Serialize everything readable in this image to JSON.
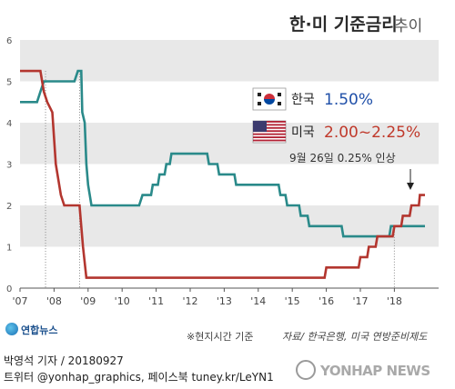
{
  "title": {
    "main": "한·미 기준금리",
    "sub": "추이"
  },
  "colors": {
    "korea_line": "#2a8a8a",
    "us_line": "#b3362f",
    "band": "#e8e8e8",
    "korea_rate_text": "#1f4fa8",
    "us_rate_text": "#c0392b"
  },
  "legend": {
    "korea": {
      "flag_icon": "korea-flag-icon",
      "name": "한국",
      "rate": "1.50%"
    },
    "us": {
      "flag_icon": "usa-flag-icon",
      "name": "미국",
      "rate": "2.00~2.25%"
    }
  },
  "annotation": "9월 26일 0.25% 인상",
  "chart_data": {
    "type": "line",
    "xlabel": "",
    "ylabel": "",
    "x_ticks": [
      "'07",
      "'08",
      "'09",
      "'10",
      "'11",
      "'12",
      "'13",
      "'14",
      "'15",
      "'16",
      "'17",
      "'18"
    ],
    "xlim": [
      2007,
      2019.3
    ],
    "ylim": [
      0,
      6
    ],
    "y_ticks": [
      0,
      1,
      2,
      3,
      4,
      5,
      6
    ],
    "series": [
      {
        "name": "한국",
        "values": [
          [
            2007.0,
            4.5
          ],
          [
            2007.5,
            4.5
          ],
          [
            2007.6,
            4.75
          ],
          [
            2007.7,
            5.0
          ],
          [
            2008.6,
            5.0
          ],
          [
            2008.7,
            5.25
          ],
          [
            2008.8,
            5.25
          ],
          [
            2008.83,
            4.25
          ],
          [
            2008.9,
            4.0
          ],
          [
            2008.95,
            3.0
          ],
          [
            2009.0,
            2.5
          ],
          [
            2009.1,
            2.0
          ],
          [
            2010.5,
            2.0
          ],
          [
            2010.6,
            2.25
          ],
          [
            2010.85,
            2.25
          ],
          [
            2010.9,
            2.5
          ],
          [
            2011.05,
            2.5
          ],
          [
            2011.1,
            2.75
          ],
          [
            2011.25,
            2.75
          ],
          [
            2011.3,
            3.0
          ],
          [
            2011.4,
            3.0
          ],
          [
            2011.45,
            3.25
          ],
          [
            2012.5,
            3.25
          ],
          [
            2012.55,
            3.0
          ],
          [
            2012.8,
            3.0
          ],
          [
            2012.85,
            2.75
          ],
          [
            2013.3,
            2.75
          ],
          [
            2013.35,
            2.5
          ],
          [
            2014.6,
            2.5
          ],
          [
            2014.65,
            2.25
          ],
          [
            2014.8,
            2.25
          ],
          [
            2014.85,
            2.0
          ],
          [
            2015.2,
            2.0
          ],
          [
            2015.25,
            1.75
          ],
          [
            2015.45,
            1.75
          ],
          [
            2015.5,
            1.5
          ],
          [
            2016.45,
            1.5
          ],
          [
            2016.5,
            1.25
          ],
          [
            2017.85,
            1.25
          ],
          [
            2017.9,
            1.5
          ],
          [
            2018.9,
            1.5
          ]
        ]
      },
      {
        "name": "미국",
        "values": [
          [
            2007.0,
            5.25
          ],
          [
            2007.6,
            5.25
          ],
          [
            2007.7,
            4.75
          ],
          [
            2007.8,
            4.5
          ],
          [
            2007.95,
            4.25
          ],
          [
            2008.05,
            3.0
          ],
          [
            2008.2,
            2.25
          ],
          [
            2008.3,
            2.0
          ],
          [
            2008.75,
            2.0
          ],
          [
            2008.8,
            1.5
          ],
          [
            2008.85,
            1.0
          ],
          [
            2008.95,
            0.25
          ],
          [
            2015.95,
            0.25
          ],
          [
            2016.0,
            0.5
          ],
          [
            2016.95,
            0.5
          ],
          [
            2017.0,
            0.75
          ],
          [
            2017.2,
            0.75
          ],
          [
            2017.25,
            1.0
          ],
          [
            2017.45,
            1.0
          ],
          [
            2017.5,
            1.25
          ],
          [
            2017.95,
            1.25
          ],
          [
            2018.0,
            1.5
          ],
          [
            2018.2,
            1.5
          ],
          [
            2018.25,
            1.75
          ],
          [
            2018.45,
            1.75
          ],
          [
            2018.5,
            2.0
          ],
          [
            2018.72,
            2.0
          ],
          [
            2018.75,
            2.25
          ],
          [
            2018.9,
            2.25
          ]
        ]
      }
    ]
  },
  "footer": {
    "logo_text": "연합뉴스",
    "note": "※현지시간 기준",
    "source": "자료/ 한국은행, 미국 연방준비제도",
    "byline": "박영석 기자 / 20180927",
    "social": "트위터 @yonhap_graphics, 페이스북 tuney.kr/LeYN1",
    "watermark": "YONHAP NEWS"
  }
}
